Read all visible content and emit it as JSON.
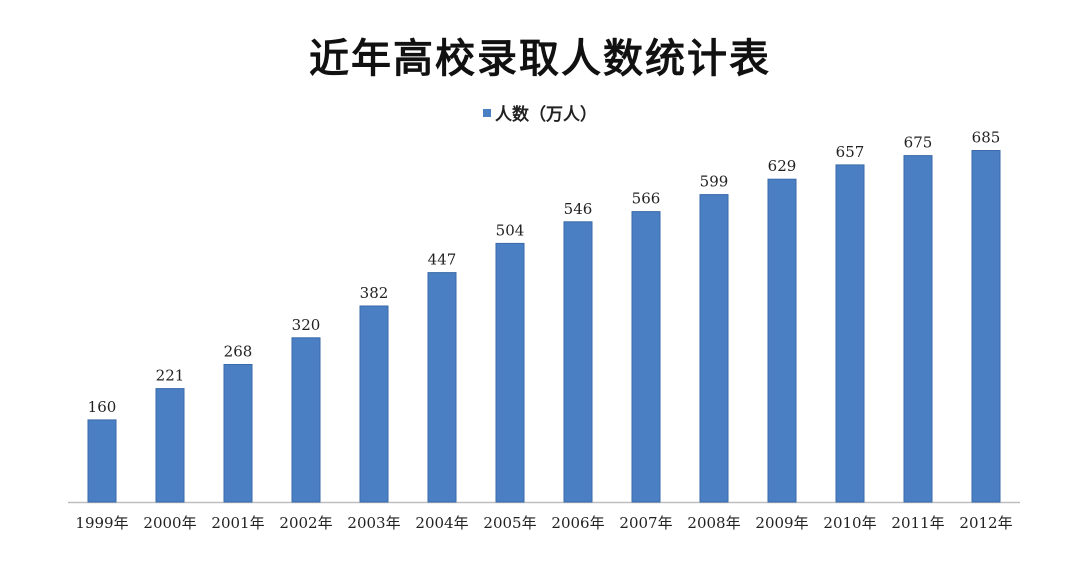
{
  "chart_data": {
    "type": "bar",
    "title": "近年高校录取人数统计表",
    "legend_position": "top",
    "series": [
      {
        "name": "人数（万人）",
        "values": [
          160,
          221,
          268,
          320,
          382,
          447,
          504,
          546,
          566,
          599,
          629,
          657,
          675,
          685
        ]
      }
    ],
    "categories": [
      "1999年",
      "2000年",
      "2001年",
      "2002年",
      "2003年",
      "2004年",
      "2005年",
      "2006年",
      "2007年",
      "2008年",
      "2009年",
      "2010年",
      "2011年",
      "2012年"
    ],
    "ylim": [
      0,
      760
    ],
    "grid": false,
    "colors": {
      "bar": "#4a7fc4",
      "bar_edge": "#3a6aaa",
      "axis": "#bfbfbf"
    }
  }
}
